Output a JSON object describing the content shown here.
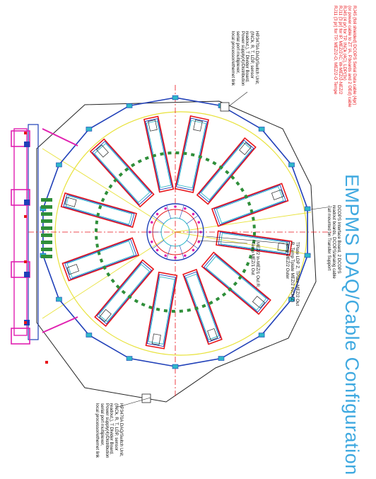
{
  "title": "EMPMS DAQ/Cable Configuration",
  "cable_legend": [
    "RJ45 (foil shielded) DCOPS Serial Data cable (4pr)",
    "(or power cable to ZT IA, P.boards and 2 OEd) cable",
    "RJ45 (4 pr) for TP, INCk (4C), LDP(3x)",
    "RJ11 (3 pr) for IP, MEZ/2-IC, W-MEZ/2-NEZ/2",
    "RJ11 (3 pr) for TP, MEZ/2-O, MEZ/2-O Tempe"
  ],
  "daq_unit_top": [
    "HP3470A DAQ/Switch Unit,",
    "(INCk, R, T, LDP, sensor",
    "readout,), T Divider Board,",
    "Power supply(4)/Distribution",
    "serial port multiplexer,",
    "local processor/ethernet link"
  ],
  "daq_unit_bottom": [
    "HP3470A DAQ/Switch Unit,",
    "(INCk, R, T, LDP, sensor",
    "readout,), T Divider Board,",
    "Power supply(4)/Distribution",
    "serial port multiplexer,",
    "local processor/ethernet link"
  ],
  "dcops_note": [
    "DCOPS Interface Board, 2 DCOPS",
    "readout boards, DCOPS/analog cable",
    "- all mounted on Transfer Support"
  ],
  "tplate_note": [
    "TPlate LDP Z, TPlate-MEZ/2 Out",
    "R, Temp Tplate MEZ/2 INCk(Z)",
    "Temp MEZ/2 Outer"
  ],
  "mez_note": [
    "MEZ/2 In-MEZ/1 Out R,",
    "Temp MEZ/1 Out"
  ],
  "colors": {
    "title": "#3fa9e0",
    "cable_red": "#e8151b",
    "chamber_blue": "#1f3fb8",
    "chamber_cyan": "#2fb7c9",
    "yellow_path": "#e8e23a",
    "dashed_green": "#2f8f3a",
    "magenta_support": "#e020b0",
    "outline_black": "#222222"
  }
}
